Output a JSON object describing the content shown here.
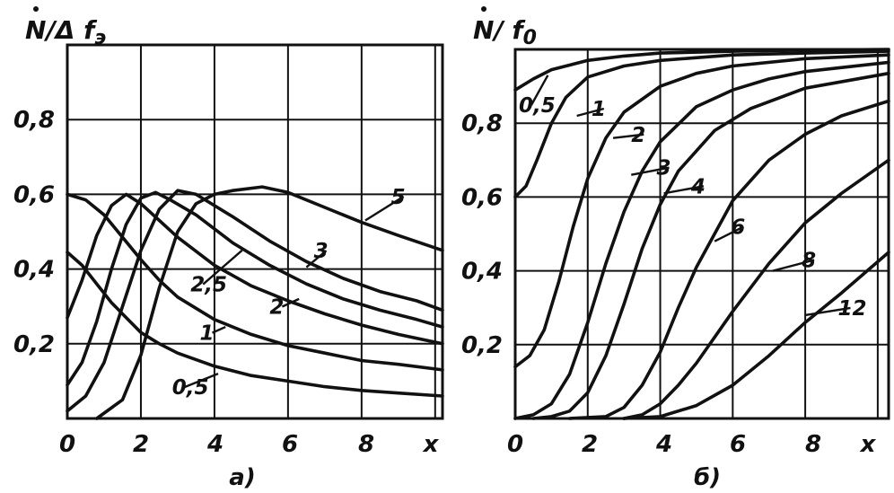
{
  "chart_data": [
    {
      "type": "line",
      "caption": "a)",
      "ylabel_parts": [
        "N",
        "/Δ f",
        "э"
      ],
      "xlabel": "x",
      "xlim": [
        0,
        10.2
      ],
      "ylim": [
        0,
        1.0
      ],
      "xticks": [
        "0",
        "2",
        "4",
        "6",
        "8"
      ],
      "yticks": [
        {
          "value": 0.2,
          "label": "0,2"
        },
        {
          "value": 0.4,
          "label": "0,4"
        },
        {
          "value": 0.6,
          "label": "0,6"
        },
        {
          "value": 0.8,
          "label": "0,8"
        }
      ],
      "grid": true,
      "series": [
        {
          "label": "0,5",
          "label_at": [
            2.85,
            0.065
          ],
          "anchor_at": [
            4.1,
            0.12
          ],
          "points": [
            [
              0,
              0.445
            ],
            [
              0.4,
              0.41
            ],
            [
              0.8,
              0.36
            ],
            [
              1.2,
              0.31
            ],
            [
              1.6,
              0.27
            ],
            [
              2,
              0.23
            ],
            [
              2.5,
              0.2
            ],
            [
              3,
              0.175
            ],
            [
              4,
              0.14
            ],
            [
              5,
              0.115
            ],
            [
              6,
              0.1
            ],
            [
              7,
              0.085
            ],
            [
              8,
              0.075
            ],
            [
              9,
              0.068
            ],
            [
              10.2,
              0.06
            ]
          ]
        },
        {
          "label": "1",
          "label_at": [
            3.6,
            0.21
          ],
          "anchor_at": [
            4.3,
            0.245
          ],
          "points": [
            [
              0,
              0.6
            ],
            [
              0.5,
              0.585
            ],
            [
              1,
              0.545
            ],
            [
              1.5,
              0.485
            ],
            [
              2,
              0.425
            ],
            [
              2.5,
              0.37
            ],
            [
              3,
              0.325
            ],
            [
              4,
              0.265
            ],
            [
              5,
              0.225
            ],
            [
              6,
              0.195
            ],
            [
              7,
              0.175
            ],
            [
              8,
              0.155
            ],
            [
              9,
              0.145
            ],
            [
              10.2,
              0.13
            ]
          ]
        },
        {
          "label": "2",
          "label_at": [
            5.5,
            0.28
          ],
          "anchor_at": [
            6.3,
            0.32
          ],
          "points": [
            [
              0,
              0.27
            ],
            [
              0.4,
              0.37
            ],
            [
              0.8,
              0.49
            ],
            [
              1.2,
              0.57
            ],
            [
              1.6,
              0.6
            ],
            [
              2,
              0.575
            ],
            [
              2.5,
              0.53
            ],
            [
              3,
              0.485
            ],
            [
              4,
              0.41
            ],
            [
              5,
              0.355
            ],
            [
              6,
              0.315
            ],
            [
              7,
              0.28
            ],
            [
              8,
              0.25
            ],
            [
              9,
              0.225
            ],
            [
              10.2,
              0.2
            ]
          ]
        },
        {
          "label": "2,5",
          "label_at": [
            3.35,
            0.34
          ],
          "anchor_at": [
            4.75,
            0.45
          ],
          "points": [
            [
              0,
              0.09
            ],
            [
              0.4,
              0.15
            ],
            [
              0.8,
              0.26
            ],
            [
              1.2,
              0.4
            ],
            [
              1.6,
              0.52
            ],
            [
              2,
              0.59
            ],
            [
              2.4,
              0.605
            ],
            [
              2.8,
              0.585
            ],
            [
              3.5,
              0.545
            ],
            [
              4.5,
              0.47
            ],
            [
              5.5,
              0.41
            ],
            [
              6.5,
              0.36
            ],
            [
              7.5,
              0.32
            ],
            [
              8.5,
              0.29
            ],
            [
              9.5,
              0.265
            ],
            [
              10.2,
              0.245
            ]
          ]
        },
        {
          "label": "3",
          "label_at": [
            6.7,
            0.43
          ],
          "anchor_at": [
            6.5,
            0.405
          ],
          "points": [
            [
              0,
              0.02
            ],
            [
              0.5,
              0.06
            ],
            [
              1,
              0.15
            ],
            [
              1.5,
              0.3
            ],
            [
              2,
              0.45
            ],
            [
              2.5,
              0.56
            ],
            [
              3,
              0.61
            ],
            [
              3.5,
              0.6
            ],
            [
              4.5,
              0.54
            ],
            [
              5.5,
              0.475
            ],
            [
              6.5,
              0.42
            ],
            [
              7.5,
              0.375
            ],
            [
              8.5,
              0.34
            ],
            [
              9.5,
              0.315
            ],
            [
              10.2,
              0.29
            ]
          ]
        },
        {
          "label": "5",
          "label_at": [
            8.8,
            0.575
          ],
          "anchor_at": [
            8.1,
            0.53
          ],
          "points": [
            [
              0.8,
              0
            ],
            [
              1.5,
              0.05
            ],
            [
              2,
              0.17
            ],
            [
              2.5,
              0.35
            ],
            [
              3,
              0.5
            ],
            [
              3.5,
              0.575
            ],
            [
              4,
              0.6
            ],
            [
              4.5,
              0.61
            ],
            [
              5.3,
              0.62
            ],
            [
              6,
              0.605
            ],
            [
              7,
              0.565
            ],
            [
              8,
              0.525
            ],
            [
              9,
              0.49
            ],
            [
              10.2,
              0.45
            ]
          ]
        }
      ]
    },
    {
      "type": "line",
      "caption": "б)",
      "ylabel_parts": [
        "N",
        "/ f",
        "0"
      ],
      "xlabel": "x",
      "xlim": [
        0,
        10.3
      ],
      "ylim": [
        0,
        1.0
      ],
      "xticks": [
        "0",
        "2",
        "4",
        "6",
        "8"
      ],
      "yticks": [
        {
          "value": 0.2,
          "label": "0,2"
        },
        {
          "value": 0.4,
          "label": "0,4"
        },
        {
          "value": 0.6,
          "label": "0,6"
        },
        {
          "value": 0.8,
          "label": "0,8"
        }
      ],
      "grid": true,
      "series": [
        {
          "label": "0,5",
          "label_at": [
            0.1,
            0.83
          ],
          "anchor_at": [
            0.9,
            0.93
          ],
          "points": [
            [
              0,
              0.89
            ],
            [
              0.5,
              0.92
            ],
            [
              1,
              0.945
            ],
            [
              2,
              0.97
            ],
            [
              3,
              0.982
            ],
            [
              4,
              0.99
            ],
            [
              6,
              0.995
            ],
            [
              8,
              0.998
            ],
            [
              10.3,
              1.0
            ]
          ]
        },
        {
          "label": "1",
          "label_at": [
            2.1,
            0.82
          ],
          "anchor_at": [
            1.7,
            0.82
          ],
          "points": [
            [
              0,
              0.6
            ],
            [
              0.3,
              0.63
            ],
            [
              0.6,
              0.7
            ],
            [
              1,
              0.8
            ],
            [
              1.4,
              0.87
            ],
            [
              2,
              0.925
            ],
            [
              3,
              0.955
            ],
            [
              4,
              0.97
            ],
            [
              6,
              0.985
            ],
            [
              8,
              0.99
            ],
            [
              10.3,
              0.995
            ]
          ]
        },
        {
          "label": "2",
          "label_at": [
            3.2,
            0.75
          ],
          "anchor_at": [
            2.7,
            0.76
          ],
          "points": [
            [
              0,
              0.14
            ],
            [
              0.4,
              0.17
            ],
            [
              0.8,
              0.24
            ],
            [
              1.2,
              0.37
            ],
            [
              1.6,
              0.52
            ],
            [
              2,
              0.65
            ],
            [
              2.5,
              0.76
            ],
            [
              3,
              0.83
            ],
            [
              4,
              0.9
            ],
            [
              5,
              0.935
            ],
            [
              6,
              0.955
            ],
            [
              8,
              0.975
            ],
            [
              10.3,
              0.985
            ]
          ]
        },
        {
          "label": "3",
          "label_at": [
            3.9,
            0.66
          ],
          "anchor_at": [
            3.2,
            0.66
          ],
          "points": [
            [
              0,
              0
            ],
            [
              0.5,
              0.01
            ],
            [
              1,
              0.04
            ],
            [
              1.5,
              0.12
            ],
            [
              2,
              0.26
            ],
            [
              2.5,
              0.42
            ],
            [
              3,
              0.56
            ],
            [
              3.5,
              0.67
            ],
            [
              4,
              0.75
            ],
            [
              5,
              0.845
            ],
            [
              6,
              0.89
            ],
            [
              7,
              0.92
            ],
            [
              8,
              0.94
            ],
            [
              10.3,
              0.965
            ]
          ]
        },
        {
          "label": "4",
          "label_at": [
            4.85,
            0.61
          ],
          "anchor_at": [
            4.1,
            0.61
          ],
          "points": [
            [
              0.5,
              0
            ],
            [
              1,
              0.005
            ],
            [
              1.5,
              0.02
            ],
            [
              2,
              0.07
            ],
            [
              2.5,
              0.17
            ],
            [
              3,
              0.31
            ],
            [
              3.5,
              0.46
            ],
            [
              4,
              0.58
            ],
            [
              4.5,
              0.67
            ],
            [
              5.5,
              0.78
            ],
            [
              6.5,
              0.84
            ],
            [
              8,
              0.895
            ],
            [
              10.3,
              0.935
            ]
          ]
        },
        {
          "label": "6",
          "label_at": [
            5.95,
            0.5
          ],
          "anchor_at": [
            5.5,
            0.48
          ],
          "points": [
            [
              1.5,
              0
            ],
            [
              2.5,
              0.005
            ],
            [
              3,
              0.03
            ],
            [
              3.5,
              0.09
            ],
            [
              4,
              0.18
            ],
            [
              4.5,
              0.3
            ],
            [
              5,
              0.41
            ],
            [
              5.5,
              0.5
            ],
            [
              6,
              0.59
            ],
            [
              7,
              0.7
            ],
            [
              8,
              0.77
            ],
            [
              9,
              0.82
            ],
            [
              10.3,
              0.86
            ]
          ]
        },
        {
          "label": "8",
          "label_at": [
            7.9,
            0.41
          ],
          "anchor_at": [
            7.1,
            0.4
          ],
          "points": [
            [
              3,
              0
            ],
            [
              3.5,
              0.01
            ],
            [
              4,
              0.04
            ],
            [
              4.5,
              0.09
            ],
            [
              5,
              0.15
            ],
            [
              6,
              0.29
            ],
            [
              7,
              0.42
            ],
            [
              8,
              0.53
            ],
            [
              9,
              0.61
            ],
            [
              10.3,
              0.7
            ]
          ]
        },
        {
          "label": "12",
          "label_at": [
            8.9,
            0.28
          ],
          "anchor_at": [
            8.0,
            0.28
          ],
          "points": [
            [
              3,
              0
            ],
            [
              4,
              0.005
            ],
            [
              5,
              0.035
            ],
            [
              6,
              0.09
            ],
            [
              7,
              0.17
            ],
            [
              8,
              0.26
            ],
            [
              9,
              0.34
            ],
            [
              10.3,
              0.45
            ]
          ]
        }
      ]
    }
  ]
}
